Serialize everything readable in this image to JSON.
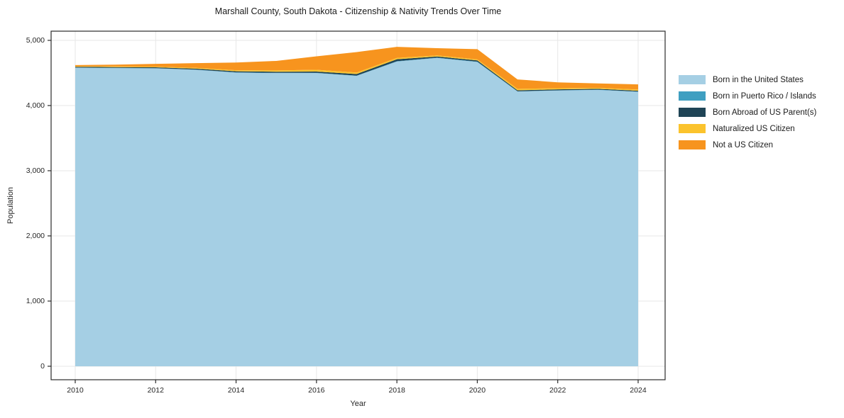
{
  "chart_data": {
    "type": "area",
    "stacked": true,
    "title": "Marshall County, South Dakota - Citizenship & Nativity Trends Over Time",
    "xlabel": "Year",
    "ylabel": "Population",
    "x": [
      2010,
      2011,
      2012,
      2013,
      2014,
      2015,
      2016,
      2017,
      2018,
      2019,
      2020,
      2021,
      2022,
      2023,
      2024
    ],
    "series": [
      {
        "name": "Born in the United States",
        "color": "#a5cfe4",
        "values": [
          4580,
          4575,
          4570,
          4548,
          4505,
          4498,
          4498,
          4455,
          4675,
          4730,
          4668,
          4215,
          4230,
          4240,
          4210
        ]
      },
      {
        "name": "Born in Puerto Rico / Islands",
        "color": "#3f9fc1",
        "values": [
          3,
          3,
          3,
          4,
          4,
          4,
          5,
          4,
          5,
          5,
          5,
          4,
          4,
          4,
          4
        ]
      },
      {
        "name": "Born Abroad of US Parent(s)",
        "color": "#1f4456",
        "values": [
          12,
          12,
          13,
          14,
          16,
          17,
          18,
          25,
          30,
          18,
          20,
          15,
          14,
          13,
          13
        ]
      },
      {
        "name": "Naturalized US Citizen",
        "color": "#fbc32d",
        "values": [
          8,
          10,
          10,
          12,
          17,
          20,
          28,
          22,
          20,
          15,
          15,
          22,
          18,
          15,
          18
        ]
      },
      {
        "name": "Not a US Citizen",
        "color": "#f7941e",
        "values": [
          17,
          28,
          44,
          72,
          118,
          146,
          206,
          315,
          170,
          112,
          157,
          145,
          90,
          68,
          80
        ]
      }
    ],
    "xticks": [
      2010,
      2012,
      2014,
      2016,
      2018,
      2020,
      2022,
      2024
    ],
    "yticks": [
      0,
      1000,
      2000,
      3000,
      4000,
      5000
    ],
    "xlim": [
      2009.4,
      2024.671
    ],
    "ylim": [
      -207,
      5141
    ],
    "grid": true,
    "grid_color": "#e7e7e7",
    "axis_color": "#2b2b2b",
    "text_color": "#262626",
    "legend_position": "right-outside"
  }
}
